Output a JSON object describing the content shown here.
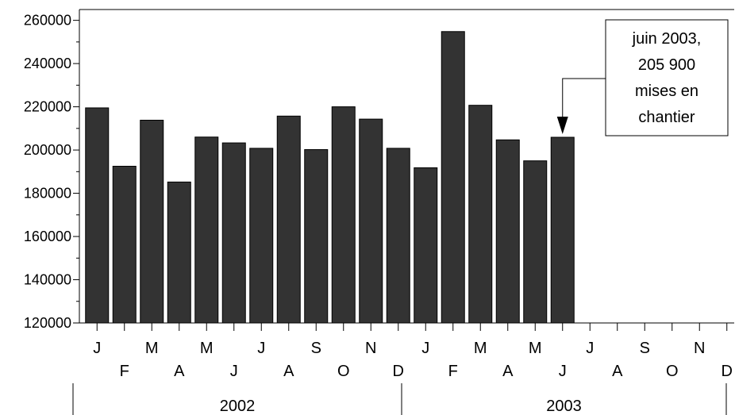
{
  "chart_data": {
    "type": "bar",
    "title": "",
    "xlabel": "",
    "ylabel": "",
    "ylim": [
      120000,
      265000
    ],
    "y_ticks": [
      {
        "value": 120000,
        "label": "120000"
      },
      {
        "value": 140000,
        "label": "140000"
      },
      {
        "value": 160000,
        "label": "160000"
      },
      {
        "value": 180000,
        "label": "180000"
      },
      {
        "value": 200000,
        "label": "200000"
      },
      {
        "value": 220000,
        "label": "220000"
      },
      {
        "value": 240000,
        "label": "240000"
      },
      {
        "value": 260000,
        "label": "260000"
      }
    ],
    "month_labels": [
      "J",
      "F",
      "M",
      "A",
      "M",
      "J",
      "J",
      "A",
      "S",
      "O",
      "N",
      "D",
      "J",
      "F",
      "M",
      "A",
      "M",
      "J",
      "J",
      "A",
      "S",
      "O",
      "N",
      "D"
    ],
    "years": [
      {
        "label": "2002",
        "start": 0,
        "end": 12
      },
      {
        "label": "2003",
        "start": 12,
        "end": 24
      }
    ],
    "values": [
      219500,
      192500,
      213800,
      185200,
      206000,
      203300,
      200800,
      215700,
      200200,
      220000,
      214300,
      200800,
      191800,
      254800,
      220700,
      204700,
      195000,
      205900
    ],
    "bar_color": "#333333",
    "annotation": {
      "lines": [
        "juin 2003,",
        "205 900",
        "mises en",
        "chantier"
      ],
      "target_index": 17
    }
  }
}
